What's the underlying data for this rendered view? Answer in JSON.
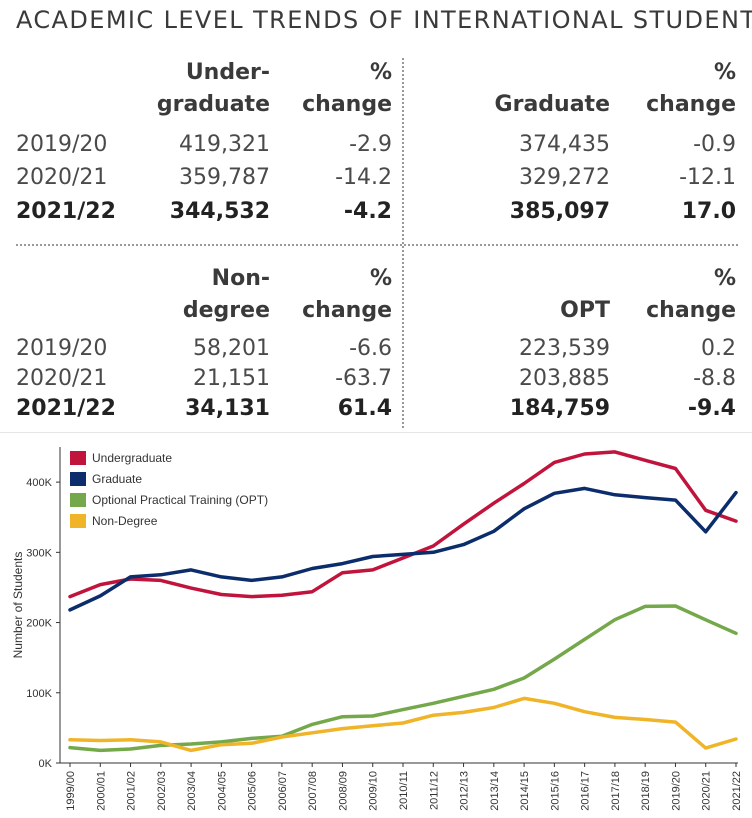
{
  "title": "ACADEMIC LEVEL TRENDS OF INTERNATIONAL STUDENTS",
  "tables": {
    "undergrad": {
      "header_line1": "Under-",
      "header_line2": "graduate",
      "pct_line1": "%",
      "pct_line2": "change",
      "rows": [
        {
          "year": "2019/20",
          "value": "419,321",
          "change": "-2.9",
          "bold": false
        },
        {
          "year": "2020/21",
          "value": "359,787",
          "change": "-14.2",
          "bold": false
        },
        {
          "year": "2021/22",
          "value": "344,532",
          "change": "-4.2",
          "bold": true
        }
      ]
    },
    "graduate": {
      "header_line2": "Graduate",
      "pct_line1": "%",
      "pct_line2": "change",
      "rows": [
        {
          "value": "374,435",
          "change": "-0.9",
          "bold": false
        },
        {
          "value": "329,272",
          "change": "-12.1",
          "bold": false
        },
        {
          "value": "385,097",
          "change": "17.0",
          "bold": true
        }
      ]
    },
    "nondegree": {
      "header_line1": "Non-",
      "header_line2": "degree",
      "pct_line1": "%",
      "pct_line2": "change",
      "rows": [
        {
          "year": "2019/20",
          "value": "58,201",
          "change": "-6.6",
          "bold": false
        },
        {
          "year": "2020/21",
          "value": "21,151",
          "change": "-63.7",
          "bold": false
        },
        {
          "year": "2021/22",
          "value": "34,131",
          "change": "61.4",
          "bold": true
        }
      ]
    },
    "opt": {
      "header_line2": "OPT",
      "pct_line1": "%",
      "pct_line2": "change",
      "rows": [
        {
          "value": "223,539",
          "change": "0.2",
          "bold": false
        },
        {
          "value": "203,885",
          "change": "-8.8",
          "bold": false
        },
        {
          "value": "184,759",
          "change": "-9.4",
          "bold": true
        }
      ]
    }
  },
  "chart_data": {
    "type": "line",
    "title": "",
    "xlabel": "",
    "ylabel": "Number of Students",
    "ylim": [
      0,
      450000
    ],
    "y_ticks": [
      0,
      100000,
      200000,
      300000,
      400000
    ],
    "y_tick_labels": [
      "0K",
      "100K",
      "200K",
      "300K",
      "400K"
    ],
    "grid": false,
    "legend_position": "top-left",
    "x": [
      "1999/00",
      "2000/01",
      "2001/02",
      "2002/03",
      "2003/04",
      "2004/05",
      "2005/06",
      "2006/07",
      "2007/08",
      "2008/09",
      "2009/10",
      "2010/11",
      "2011/12",
      "2012/13",
      "2013/14",
      "2014/15",
      "2015/16",
      "2016/17",
      "2017/18",
      "2018/19",
      "2019/20",
      "2020/21",
      "2021/22"
    ],
    "series": [
      {
        "name": "Undergraduate",
        "color": "#c0143c",
        "values": [
          237000,
          254000,
          262000,
          260000,
          249000,
          240000,
          237000,
          239000,
          244000,
          271000,
          275000,
          292000,
          309000,
          340000,
          370000,
          398000,
          428000,
          440000,
          443000,
          431000,
          419321,
          359787,
          344532
        ]
      },
      {
        "name": "Graduate",
        "color": "#0c2d6b",
        "values": [
          218000,
          238000,
          265000,
          268000,
          275000,
          265000,
          260000,
          265000,
          277000,
          284000,
          294000,
          297000,
          300000,
          311000,
          330000,
          362000,
          384000,
          391000,
          382000,
          378000,
          374435,
          329272,
          385097
        ]
      },
      {
        "name": "Optional Practical Training (OPT)",
        "color": "#74a84a",
        "values": [
          22000,
          18000,
          20000,
          25000,
          27000,
          30000,
          35000,
          38000,
          55000,
          66000,
          67000,
          76000,
          85000,
          95000,
          105000,
          121000,
          148000,
          176000,
          204000,
          223000,
          223539,
          203885,
          184759
        ]
      },
      {
        "name": "Non-Degree",
        "color": "#f0b429",
        "values": [
          33000,
          32000,
          33000,
          30000,
          18000,
          26000,
          28000,
          37000,
          43000,
          49000,
          53000,
          57000,
          68000,
          72000,
          79000,
          92000,
          85000,
          73000,
          65000,
          62000,
          58201,
          21151,
          34131
        ]
      }
    ]
  }
}
